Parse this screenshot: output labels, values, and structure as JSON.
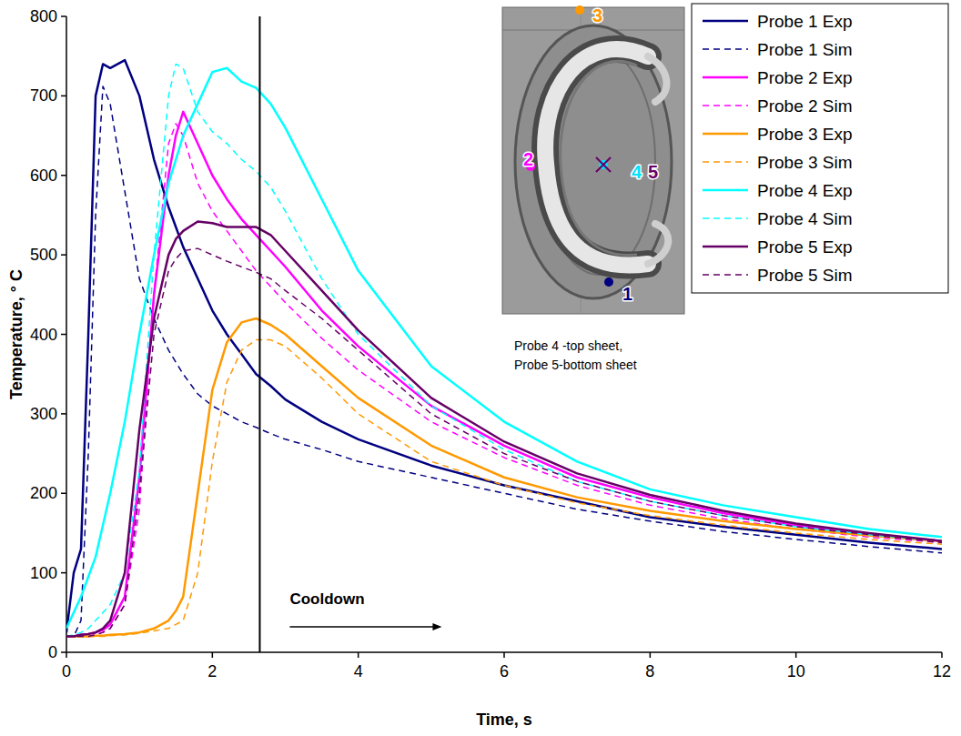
{
  "chart_data": {
    "type": "line",
    "xlabel": "Time, s",
    "ylabel": "Temperature, ° C",
    "xlim": [
      0,
      12
    ],
    "ylim": [
      0,
      800
    ],
    "xticks": [
      0,
      2,
      4,
      6,
      8,
      10,
      12
    ],
    "yticks": [
      0,
      100,
      200,
      300,
      400,
      500,
      600,
      700,
      800
    ],
    "grid": false,
    "legend": "upper right",
    "x": [
      0,
      0.1,
      0.2,
      0.3,
      0.4,
      0.5,
      0.6,
      0.8,
      1.0,
      1.2,
      1.4,
      1.5,
      1.6,
      1.8,
      2.0,
      2.2,
      2.4,
      2.6,
      2.8,
      3.0,
      3.5,
      4,
      5,
      6,
      7,
      8,
      9,
      10,
      11,
      12
    ],
    "series": [
      {
        "name": "Probe 1 Exp",
        "color": "#000080",
        "line_style": "solid",
        "values": [
          25,
          100,
          130,
          400,
          700,
          740,
          735,
          745,
          700,
          620,
          560,
          535,
          510,
          470,
          430,
          400,
          375,
          350,
          335,
          318,
          290,
          268,
          235,
          210,
          190,
          170,
          158,
          148,
          138,
          130
        ]
      },
      {
        "name": "Probe 1 Sim",
        "color": "#000080",
        "line_style": "dashed",
        "values": [
          20,
          20,
          40,
          250,
          550,
          712,
          690,
          580,
          470,
          420,
          380,
          365,
          350,
          325,
          310,
          300,
          290,
          283,
          275,
          268,
          255,
          240,
          220,
          200,
          180,
          165,
          152,
          142,
          133,
          125
        ]
      },
      {
        "name": "Probe 2 Exp",
        "color": "#ff00ff",
        "line_style": "solid",
        "values": [
          20,
          20,
          22,
          23,
          25,
          28,
          35,
          70,
          220,
          450,
          600,
          650,
          680,
          640,
          600,
          570,
          545,
          525,
          505,
          485,
          430,
          385,
          310,
          260,
          220,
          195,
          175,
          160,
          148,
          140
        ]
      },
      {
        "name": "Probe 2 Sim",
        "color": "#ff00ff",
        "line_style": "dashed",
        "values": [
          20,
          20,
          20,
          20,
          22,
          25,
          30,
          60,
          180,
          450,
          640,
          665,
          650,
          590,
          555,
          530,
          505,
          480,
          460,
          440,
          395,
          355,
          290,
          245,
          210,
          185,
          168,
          155,
          145,
          138
        ]
      },
      {
        "name": "Probe 3 Exp",
        "color": "#ff9900",
        "line_style": "solid",
        "values": [
          20,
          20,
          20,
          20,
          21,
          21,
          22,
          23,
          25,
          30,
          40,
          52,
          70,
          200,
          330,
          390,
          415,
          420,
          412,
          400,
          360,
          320,
          260,
          220,
          195,
          178,
          165,
          155,
          147,
          140
        ]
      },
      {
        "name": "Probe 3 Sim",
        "color": "#ff9900",
        "line_style": "dashed",
        "values": [
          20,
          20,
          20,
          20,
          20,
          20,
          21,
          22,
          24,
          27,
          30,
          35,
          40,
          100,
          240,
          340,
          380,
          393,
          393,
          385,
          345,
          300,
          240,
          210,
          188,
          172,
          160,
          150,
          142,
          136
        ]
      },
      {
        "name": "Probe 4 Exp",
        "color": "#00ffff",
        "line_style": "solid",
        "values": [
          30,
          50,
          70,
          95,
          120,
          160,
          200,
          290,
          400,
          500,
          590,
          620,
          650,
          690,
          730,
          735,
          718,
          710,
          690,
          660,
          570,
          480,
          360,
          290,
          240,
          205,
          185,
          170,
          155,
          145
        ]
      },
      {
        "name": "Probe 4 Sim",
        "color": "#00ffff",
        "line_style": "dashed",
        "values": [
          20,
          22,
          25,
          30,
          40,
          50,
          60,
          100,
          230,
          500,
          700,
          740,
          735,
          680,
          655,
          640,
          620,
          605,
          585,
          555,
          470,
          400,
          310,
          255,
          215,
          190,
          172,
          158,
          148,
          140
        ]
      },
      {
        "name": "Probe 5 Exp",
        "color": "#660066",
        "line_style": "solid",
        "values": [
          20,
          20,
          22,
          23,
          25,
          30,
          40,
          100,
          280,
          420,
          500,
          520,
          530,
          542,
          540,
          535,
          535,
          535,
          525,
          505,
          455,
          405,
          320,
          265,
          225,
          198,
          178,
          162,
          150,
          140
        ]
      },
      {
        "name": "Probe 5 Sim",
        "color": "#660066",
        "line_style": "dashed",
        "values": [
          20,
          20,
          20,
          20,
          22,
          25,
          30,
          60,
          200,
          400,
          480,
          495,
          505,
          508,
          500,
          492,
          485,
          478,
          470,
          455,
          420,
          380,
          300,
          250,
          215,
          190,
          172,
          158,
          148,
          138
        ]
      }
    ],
    "annotations": [
      {
        "text": "Cooldown",
        "x": 2.65
      }
    ],
    "inset": {
      "caption": [
        "Probe 4 -top  sheet,",
        "Probe 5-bottom sheet"
      ],
      "probes": [
        {
          "label": "1",
          "color": "#000080",
          "marker": "circle"
        },
        {
          "label": "2",
          "color": "#ff00ff",
          "marker": "circle"
        },
        {
          "label": "3",
          "color": "#ff9900",
          "marker": "circle"
        },
        {
          "label": "4",
          "color": "#00e0ff",
          "marker": "circle"
        },
        {
          "label": "5",
          "color": "#660066",
          "marker": "x"
        }
      ]
    }
  }
}
